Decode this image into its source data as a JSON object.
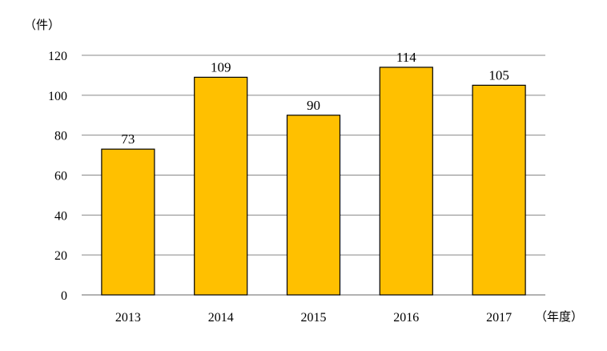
{
  "chart_data": {
    "type": "bar",
    "categories": [
      "2013",
      "2014",
      "2015",
      "2016",
      "2017"
    ],
    "values": [
      73,
      109,
      90,
      114,
      105
    ],
    "ylabel": "（件）",
    "xlabel": "（年度）",
    "ylim": [
      0,
      120
    ],
    "yticks": [
      "0",
      "20",
      "40",
      "60",
      "80",
      "100",
      "120"
    ],
    "grid": true,
    "legend": "none",
    "colors": {
      "bar": "#FFC000",
      "bar_border": "#000000",
      "grid": "#888888"
    }
  }
}
